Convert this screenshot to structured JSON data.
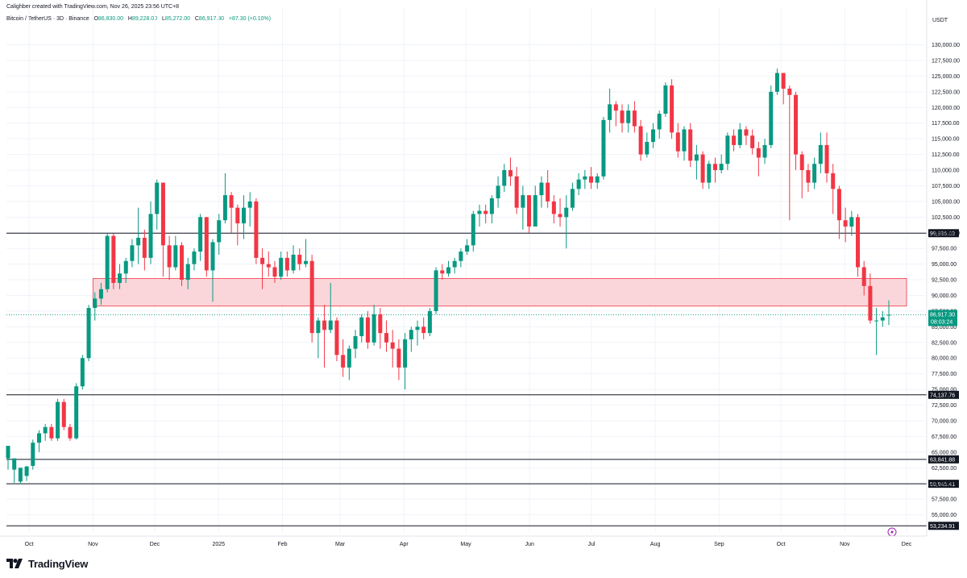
{
  "header": {
    "created_by": "Calighber created with TradingView.com, Nov 26, 2025 23:56 UTC+8"
  },
  "symbol": {
    "title": "Bitcoin / TetherUS · 3D · Binance",
    "open_label": "O",
    "open": "86,830.00",
    "high_label": "H",
    "high": "89,228.00",
    "low_label": "L",
    "low": "85,272.00",
    "close_label": "C",
    "close": "86,917.30",
    "change": "+87.30 (+0.10%)"
  },
  "price_axis": {
    "currency": "USDT",
    "current_price": "86,917.30",
    "countdown": "08:03:24"
  },
  "colors": {
    "up": "#089981",
    "down": "#f23645",
    "zone_fill": "#f9d2d6",
    "zone_border": "#f23645",
    "level_line": "#131722"
  },
  "footer": {
    "brand": "TradingView",
    "logo_icon": "tradingview-logo-icon"
  },
  "chart_data": {
    "type": "candlestick",
    "title": "Bitcoin / TetherUS · 3D · Binance",
    "xlabel": "",
    "ylabel": "",
    "ylim": [
      52500,
      132000
    ],
    "y_ticks": [
      55000,
      57500,
      60000,
      62500,
      65000,
      67500,
      70000,
      72500,
      75000,
      77500,
      80000,
      82500,
      85000,
      87500,
      90000,
      92500,
      95000,
      97500,
      100000,
      102500,
      105000,
      107500,
      110000,
      112500,
      115000,
      117500,
      120000,
      122500,
      125000,
      127500,
      130000
    ],
    "y_tick_labels": [
      "55,000.00",
      "57,500.00",
      "60,000.00",
      "62,500.00",
      "65,000.00",
      "67,500.00",
      "70,000.00",
      "72,500.00",
      "75,000.00",
      "77,500.00",
      "80,000.00",
      "82,500.00",
      "85,000.00",
      "87,500.00",
      "90,000.00",
      "92,500.00",
      "95,000.00",
      "97,500.00",
      "100,000.00",
      "102,500.00",
      "105,000.00",
      "107,500.00",
      "110,000.00",
      "112,500.00",
      "115,000.00",
      "117,500.00",
      "120,000.00",
      "122,500.00",
      "125,000.00",
      "127,500.00",
      "130,000.00"
    ],
    "x_labels": [
      {
        "label": "Oct",
        "date": "2024-10-01"
      },
      {
        "label": "Nov",
        "date": "2024-11-01"
      },
      {
        "label": "Dec",
        "date": "2024-12-01"
      },
      {
        "label": "2025",
        "date": "2025-01-01"
      },
      {
        "label": "Feb",
        "date": "2025-02-01"
      },
      {
        "label": "Mar",
        "date": "2025-03-01"
      },
      {
        "label": "Apr",
        "date": "2025-04-01"
      },
      {
        "label": "May",
        "date": "2025-05-01"
      },
      {
        "label": "Jun",
        "date": "2025-06-01"
      },
      {
        "label": "Jul",
        "date": "2025-07-01"
      },
      {
        "label": "Aug",
        "date": "2025-08-01"
      },
      {
        "label": "Sep",
        "date": "2025-09-01"
      },
      {
        "label": "Oct",
        "date": "2025-10-01"
      },
      {
        "label": "Nov",
        "date": "2025-11-01"
      },
      {
        "label": "Dec",
        "date": "2025-12-01"
      }
    ],
    "horizontal_levels": [
      {
        "price": 99935.03,
        "label": "99,935.03"
      },
      {
        "price": 74137.76,
        "label": "74,137.76"
      },
      {
        "price": 63841.88,
        "label": "63,841.88"
      },
      {
        "price": 59945.41,
        "label": "59,945.41"
      },
      {
        "price": 53234.91,
        "label": "53,234.91"
      }
    ],
    "zone": {
      "low": 88300,
      "high": 92700,
      "from": "2024-11-01",
      "to": "2025-12-01"
    },
    "current_price": 86917.3,
    "candles": [
      [
        64000,
        66000,
        64500,
        62200
      ],
      [
        62200,
        64000,
        62900,
        60100
      ],
      [
        60300,
        62500,
        61200,
        59900
      ],
      [
        61200,
        62700,
        62800,
        60400
      ],
      [
        62800,
        66500,
        67000,
        62200
      ],
      [
        66500,
        68000,
        68500,
        65000
      ],
      [
        68000,
        69000,
        69500,
        66800
      ],
      [
        69000,
        67200,
        69500,
        66800
      ],
      [
        67200,
        73000,
        73500,
        66800
      ],
      [
        73000,
        69000,
        73500,
        68500
      ],
      [
        69000,
        67200,
        69500,
        66800
      ],
      [
        67200,
        75500,
        76000,
        67000
      ],
      [
        75500,
        80000,
        80500,
        75000
      ],
      [
        80000,
        88000,
        88500,
        79500
      ],
      [
        88000,
        89500,
        90500,
        86000
      ],
      [
        89500,
        91000,
        92000,
        88500
      ],
      [
        91000,
        99500,
        99900,
        90500
      ],
      [
        99500,
        92000,
        99900,
        91000
      ],
      [
        92000,
        93500,
        95000,
        91000
      ],
      [
        93500,
        95500,
        96000,
        92000
      ],
      [
        95500,
        98000,
        99000,
        94500
      ],
      [
        98000,
        99200,
        104000,
        95000
      ],
      [
        99200,
        96000,
        100500,
        94000
      ],
      [
        96000,
        103000,
        105000,
        95000
      ],
      [
        103000,
        108000,
        108500,
        100500
      ],
      [
        108000,
        98000,
        108000,
        93000
      ],
      [
        98000,
        94500,
        99500,
        92500
      ],
      [
        94500,
        98000,
        99500,
        94000
      ],
      [
        98000,
        92500,
        98500,
        91500
      ],
      [
        92500,
        95000,
        96000,
        91000
      ],
      [
        95000,
        97000,
        97500,
        94000
      ],
      [
        97000,
        102500,
        103000,
        95500
      ],
      [
        102500,
        94000,
        102500,
        93000
      ],
      [
        94000,
        98500,
        99000,
        89000
      ],
      [
        98500,
        102000,
        103000,
        96500
      ],
      [
        102000,
        106000,
        109500,
        101500
      ],
      [
        106000,
        104000,
        106500,
        100000
      ],
      [
        104000,
        101500,
        104500,
        98000
      ],
      [
        101500,
        104000,
        106000,
        99000
      ],
      [
        104000,
        105000,
        106500,
        101000
      ],
      [
        105000,
        96000,
        105500,
        95000
      ],
      [
        96000,
        95000,
        97500,
        91000
      ],
      [
        95000,
        94500,
        97000,
        93000
      ],
      [
        94500,
        93000,
        95500,
        92000
      ],
      [
        93000,
        96000,
        97000,
        92500
      ],
      [
        96000,
        94000,
        97000,
        93000
      ],
      [
        94000,
        96500,
        98000,
        93500
      ],
      [
        96500,
        95000,
        97500,
        94000
      ],
      [
        95000,
        95500,
        99000,
        94500
      ],
      [
        95500,
        84000,
        96500,
        82500
      ],
      [
        84000,
        86000,
        86500,
        80000
      ],
      [
        86000,
        84500,
        88500,
        78500
      ],
      [
        84500,
        86000,
        92000,
        84000
      ],
      [
        86000,
        80500,
        86500,
        79500
      ],
      [
        80500,
        78500,
        83000,
        77000
      ],
      [
        78500,
        81500,
        82000,
        76500
      ],
      [
        81500,
        83500,
        84500,
        80000
      ],
      [
        83500,
        86500,
        87000,
        82500
      ],
      [
        86500,
        82500,
        87500,
        81500
      ],
      [
        82500,
        87000,
        88500,
        82000
      ],
      [
        87000,
        84000,
        88000,
        81500
      ],
      [
        84000,
        82500,
        86000,
        81000
      ],
      [
        82500,
        81500,
        84500,
        78500
      ],
      [
        81500,
        78500,
        83000,
        76500
      ],
      [
        78500,
        83000,
        84000,
        75000
      ],
      [
        83000,
        84500,
        85000,
        81000
      ],
      [
        84500,
        85000,
        86000,
        82000
      ],
      [
        85000,
        84000,
        86500,
        83000
      ],
      [
        84000,
        87500,
        88000,
        83500
      ],
      [
        87500,
        94000,
        94500,
        87000
      ],
      [
        94000,
        93500,
        95000,
        92500
      ],
      [
        93500,
        94500,
        95500,
        93000
      ],
      [
        94500,
        95500,
        96000,
        93500
      ],
      [
        95500,
        97000,
        97500,
        94500
      ],
      [
        97000,
        98000,
        99000,
        96500
      ],
      [
        98000,
        103000,
        103500,
        97000
      ],
      [
        103000,
        103500,
        104500,
        101000
      ],
      [
        103500,
        103000,
        104500,
        101500
      ],
      [
        103000,
        105500,
        106000,
        101500
      ],
      [
        105500,
        107500,
        109000,
        104000
      ],
      [
        107500,
        110000,
        111000,
        106500
      ],
      [
        110000,
        109000,
        112000,
        107500
      ],
      [
        109000,
        104000,
        110500,
        103000
      ],
      [
        104000,
        106000,
        107500,
        100500
      ],
      [
        106000,
        101000,
        106000,
        100000
      ],
      [
        101000,
        106000,
        107500,
        101000
      ],
      [
        106000,
        108000,
        109000,
        104000
      ],
      [
        108000,
        105000,
        110000,
        104000
      ],
      [
        105000,
        103000,
        106000,
        101500
      ],
      [
        103000,
        102500,
        105500,
        101000
      ],
      [
        102500,
        104000,
        106000,
        97500
      ],
      [
        104000,
        107000,
        108000,
        103500
      ],
      [
        107000,
        108500,
        109500,
        106000
      ],
      [
        108500,
        109000,
        110000,
        107000
      ],
      [
        109000,
        108000,
        110500,
        107000
      ],
      [
        108000,
        109000,
        109500,
        107000
      ],
      [
        109000,
        118000,
        118500,
        108500
      ],
      [
        118000,
        120500,
        123000,
        116000
      ],
      [
        120500,
        119500,
        121000,
        117000
      ],
      [
        119500,
        117500,
        120500,
        116000
      ],
      [
        117500,
        119500,
        120500,
        116000
      ],
      [
        119500,
        117000,
        121000,
        116000
      ],
      [
        117000,
        112500,
        118000,
        111500
      ],
      [
        112500,
        114500,
        116000,
        112000
      ],
      [
        114500,
        116500,
        117500,
        113500
      ],
      [
        116500,
        119000,
        119500,
        115000
      ],
      [
        119000,
        123500,
        124000,
        118500
      ],
      [
        123500,
        116000,
        124500,
        115000
      ],
      [
        116000,
        113000,
        117500,
        112000
      ],
      [
        113000,
        116500,
        117000,
        111500
      ],
      [
        116500,
        111500,
        117500,
        110500
      ],
      [
        111500,
        112500,
        114000,
        108500
      ],
      [
        112500,
        108000,
        113000,
        107000
      ],
      [
        108000,
        111000,
        111500,
        107000
      ],
      [
        111000,
        110000,
        112000,
        108000
      ],
      [
        110000,
        111000,
        112500,
        109500
      ],
      [
        111000,
        115500,
        116000,
        110000
      ],
      [
        115500,
        114000,
        116500,
        113000
      ],
      [
        114000,
        116500,
        117500,
        113500
      ],
      [
        116500,
        115500,
        117000,
        114000
      ],
      [
        115500,
        113500,
        116500,
        112500
      ],
      [
        113500,
        112000,
        114500,
        109000
      ],
      [
        112000,
        114000,
        115000,
        111000
      ],
      [
        114000,
        122500,
        123500,
        113500
      ],
      [
        122500,
        125500,
        126200,
        122000
      ],
      [
        125500,
        123000,
        125500,
        120500
      ],
      [
        123000,
        122000,
        123500,
        102000
      ],
      [
        122000,
        112500,
        122500,
        110000
      ],
      [
        112500,
        110000,
        113000,
        105500
      ],
      [
        110000,
        108000,
        111000,
        106500
      ],
      [
        108000,
        111000,
        112000,
        107000
      ],
      [
        111000,
        114000,
        116000,
        109500
      ],
      [
        114000,
        109500,
        116000,
        108000
      ],
      [
        109500,
        107000,
        111000,
        103000
      ],
      [
        107000,
        102000,
        107500,
        99000
      ],
      [
        102000,
        101000,
        104000,
        98500
      ],
      [
        101000,
        102500,
        103500,
        99500
      ],
      [
        102500,
        94500,
        103000,
        93000
      ],
      [
        94500,
        91500,
        95500,
        90000
      ],
      [
        91500,
        86000,
        93500,
        85500
      ],
      [
        86000,
        86000,
        88000,
        80500
      ],
      [
        86000,
        86500,
        87500,
        85000
      ],
      [
        86830,
        86917.3,
        89228,
        85272
      ]
    ]
  }
}
